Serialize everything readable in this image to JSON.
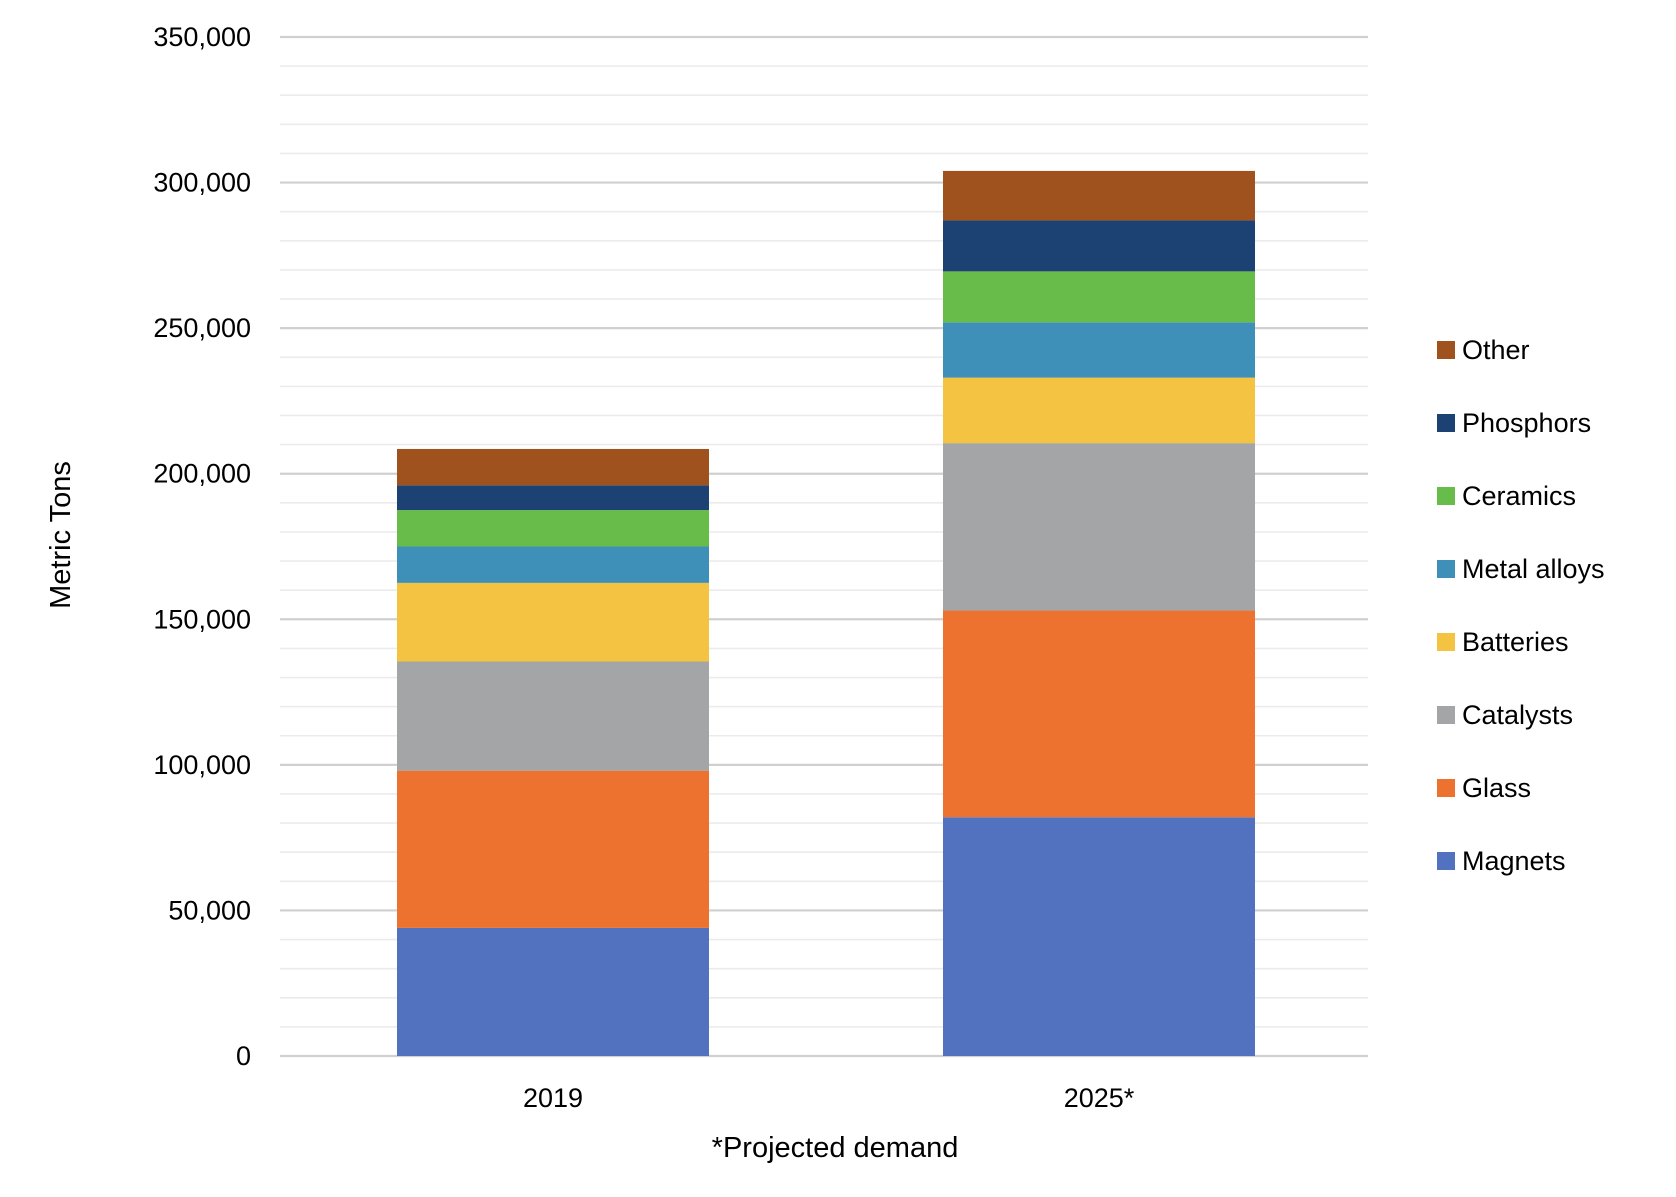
{
  "chart_data": {
    "type": "bar",
    "stacked": true,
    "categories": [
      "2019",
      "2025*"
    ],
    "series": [
      {
        "name": "Magnets",
        "values": [
          44000,
          82000
        ],
        "color": "#5272BF"
      },
      {
        "name": "Glass",
        "values": [
          54000,
          71000
        ],
        "color": "#ED7230"
      },
      {
        "name": "Catalysts",
        "values": [
          37500,
          57500
        ],
        "color": "#A3A5A6"
      },
      {
        "name": "Batteries",
        "values": [
          27000,
          22500
        ],
        "color": "#F5C342"
      },
      {
        "name": "Metal alloys",
        "values": [
          12500,
          19000
        ],
        "color": "#3F90B8"
      },
      {
        "name": "Ceramics",
        "values": [
          12500,
          17500
        ],
        "color": "#68BC4A"
      },
      {
        "name": "Phosphors",
        "values": [
          8500,
          17500
        ],
        "color": "#1C4273"
      },
      {
        "name": "Other",
        "values": [
          12500,
          17000
        ],
        "color": "#9F521D"
      }
    ],
    "ylabel": "Metric Tons",
    "xlabel": "",
    "ylim": [
      0,
      350000
    ],
    "yticks": [
      0,
      50000,
      100000,
      150000,
      200000,
      250000,
      300000,
      350000
    ],
    "ytick_labels": [
      "0",
      "50,000",
      "100,000",
      "150,000",
      "200,000",
      "250,000",
      "300,000",
      "350,000"
    ],
    "grid": true,
    "gridline_color": "#D9D9D9",
    "legend_position": "right",
    "annotation": "*Projected demand"
  }
}
